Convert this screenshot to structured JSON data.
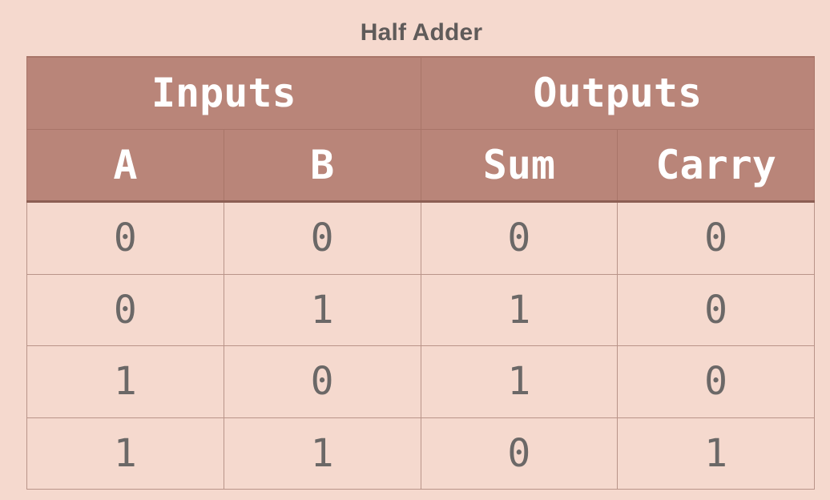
{
  "title": "Half Adder",
  "header": {
    "group_inputs": "Inputs",
    "group_outputs": "Outputs",
    "columns": [
      "A",
      "B",
      "Sum",
      "Carry"
    ]
  },
  "rows": [
    [
      "0",
      "0",
      "0",
      "0"
    ],
    [
      "0",
      "1",
      "1",
      "0"
    ],
    [
      "1",
      "0",
      "1",
      "0"
    ],
    [
      "1",
      "1",
      "0",
      "1"
    ]
  ],
  "colors": {
    "background": "#f5d9ce",
    "header_fill": "#b98579",
    "header_text": "#ffffff",
    "cell_text": "#6b6867",
    "title_text": "#5f5b5a"
  }
}
